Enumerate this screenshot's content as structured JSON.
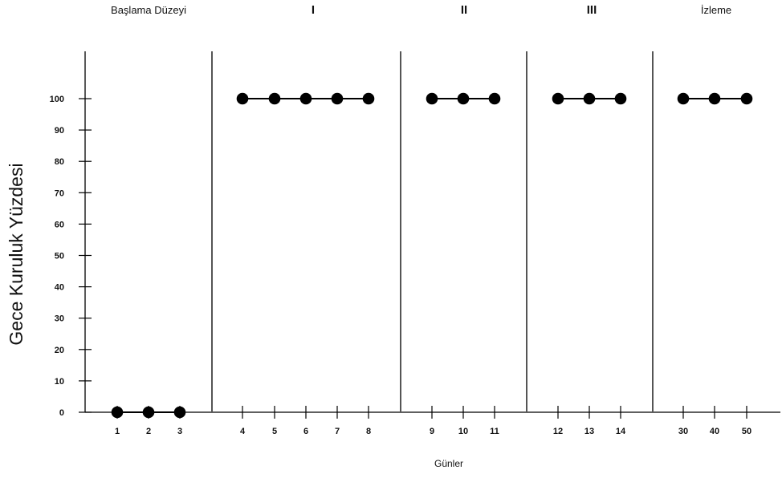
{
  "chart_data": {
    "type": "scatter",
    "title": "",
    "xlabel": "Günler",
    "ylabel": "Gece Kuruluk Yüzdesi",
    "ylim": [
      0,
      100
    ],
    "yticks": [
      0,
      10,
      20,
      30,
      40,
      50,
      60,
      70,
      80,
      90,
      100
    ],
    "grid": false,
    "legend": "none",
    "x_categories": [
      "1",
      "2",
      "3",
      "4",
      "5",
      "6",
      "7",
      "8",
      "9",
      "10",
      "11",
      "12",
      "13",
      "14",
      "30",
      "40",
      "50"
    ],
    "phases": [
      {
        "label": "Başlama Düzeyi",
        "days": [
          "1",
          "2",
          "3"
        ],
        "values": [
          0,
          0,
          0
        ]
      },
      {
        "label": "I",
        "days": [
          "4",
          "5",
          "6",
          "7",
          "8"
        ],
        "values": [
          100,
          100,
          100,
          100,
          100
        ]
      },
      {
        "label": "II",
        "days": [
          "9",
          "10",
          "11"
        ],
        "values": [
          100,
          100,
          100
        ]
      },
      {
        "label": "III",
        "days": [
          "12",
          "13",
          "14"
        ],
        "values": [
          100,
          100,
          100
        ]
      },
      {
        "label": "İzleme",
        "days": [
          "30",
          "40",
          "50"
        ],
        "values": [
          100,
          100,
          100
        ]
      }
    ],
    "colors": {
      "marker": "#000000",
      "line": "#000000",
      "axis": "#000000",
      "phase_line": "#555555"
    }
  }
}
